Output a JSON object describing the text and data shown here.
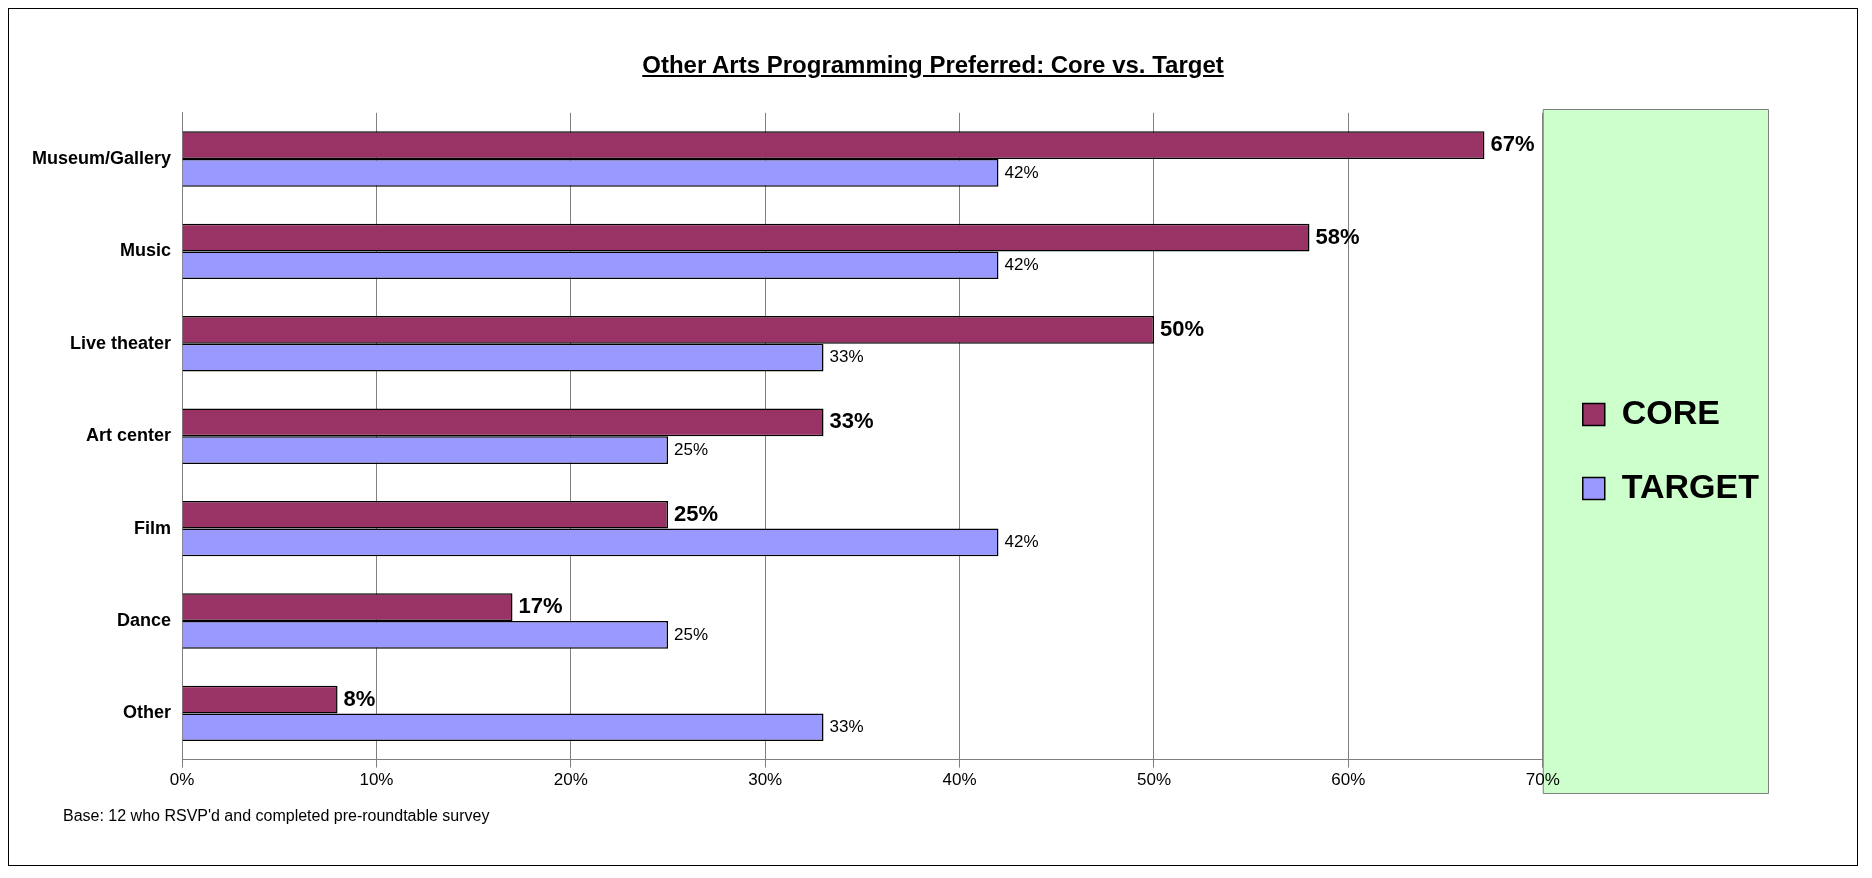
{
  "chart_data": {
    "type": "bar",
    "orientation": "horizontal",
    "title": "Other Arts Programming Preferred: Core vs. Target",
    "categories": [
      "Museum/Gallery",
      "Music",
      "Live theater",
      "Art center",
      "Film",
      "Dance",
      "Other"
    ],
    "series": [
      {
        "name": "CORE",
        "color": "#993366",
        "values": [
          67,
          58,
          50,
          33,
          25,
          17,
          8
        ],
        "value_labels": [
          "67%",
          "58%",
          "50%",
          "33%",
          "25%",
          "17%",
          "8%"
        ]
      },
      {
        "name": "TARGET",
        "color": "#9999ff",
        "values": [
          42,
          42,
          33,
          25,
          42,
          25,
          33
        ],
        "value_labels": [
          "42%",
          "42%",
          "33%",
          "25%",
          "42%",
          "25%",
          "33%"
        ]
      }
    ],
    "xlim": [
      0,
      70
    ],
    "xticks": [
      {
        "value": 0,
        "label": "0%"
      },
      {
        "value": 10,
        "label": "10%"
      },
      {
        "value": 20,
        "label": "20%"
      },
      {
        "value": 30,
        "label": "30%"
      },
      {
        "value": 40,
        "label": "40%"
      },
      {
        "value": 50,
        "label": "50%"
      },
      {
        "value": 60,
        "label": "60%"
      },
      {
        "value": 70,
        "label": "70%"
      }
    ],
    "grid": "x",
    "legend": "right",
    "annotations": [
      "Base: 12 who RSVP'd and completed pre-roundtable survey"
    ]
  }
}
